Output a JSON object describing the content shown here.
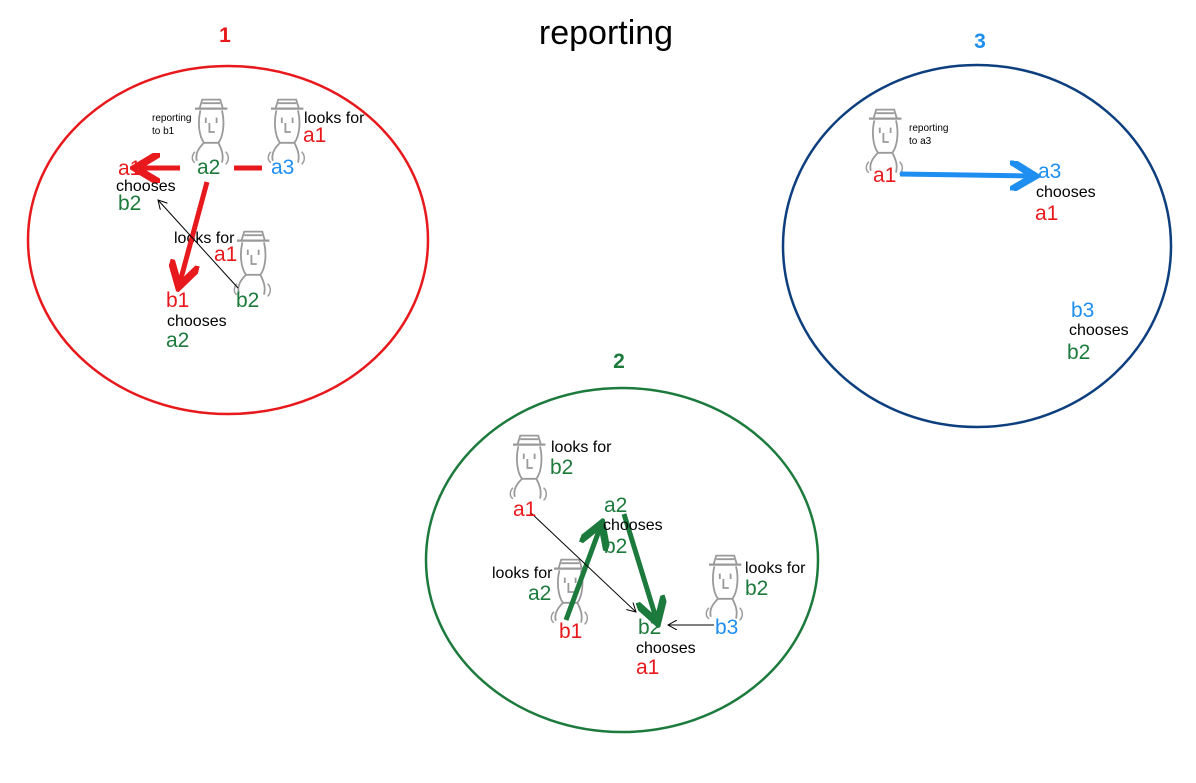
{
  "title": "reporting",
  "colors": {
    "red": "#e8191c",
    "green": "#1c7a3c",
    "blue": "#1e8ef0",
    "navy": "#0d3f7f",
    "grey": "#9a9a9a"
  },
  "icons": [
    "man-with-hat-icon"
  ],
  "panels": [
    {
      "number": "1",
      "figures": [
        {
          "note": "reporting",
          "note2": "to b1"
        },
        {
          "note": "looks for",
          "target": "a1"
        },
        {
          "note": "looks for",
          "target": "a1"
        }
      ],
      "nodes": [
        {
          "name": "a1",
          "chooses": "chooses",
          "choice": "b2"
        },
        {
          "name": "a2"
        },
        {
          "name": "a3"
        },
        {
          "name": "b1",
          "chooses": "chooses",
          "choice": "a2"
        },
        {
          "name": "b2"
        }
      ]
    },
    {
      "number": "2",
      "figures": [
        {
          "note": "looks for",
          "target": "b2"
        },
        {
          "note": "looks for",
          "target": "a2"
        },
        {
          "note": "looks for",
          "target": "b2"
        }
      ],
      "nodes": [
        {
          "name": "a1"
        },
        {
          "name": "a2",
          "chooses": "chooses",
          "choice": "b2"
        },
        {
          "name": "b1"
        },
        {
          "name": "b2",
          "chooses": "chooses",
          "choice": "a1"
        },
        {
          "name": "b3"
        }
      ]
    },
    {
      "number": "3",
      "figures": [
        {
          "note": "reporting",
          "note2": "to a3"
        }
      ],
      "nodes": [
        {
          "name": "a1"
        },
        {
          "name": "a3",
          "chooses": "chooses",
          "choice": "a1"
        },
        {
          "name": "b3",
          "chooses": "chooses",
          "choice": "b2"
        }
      ]
    }
  ]
}
